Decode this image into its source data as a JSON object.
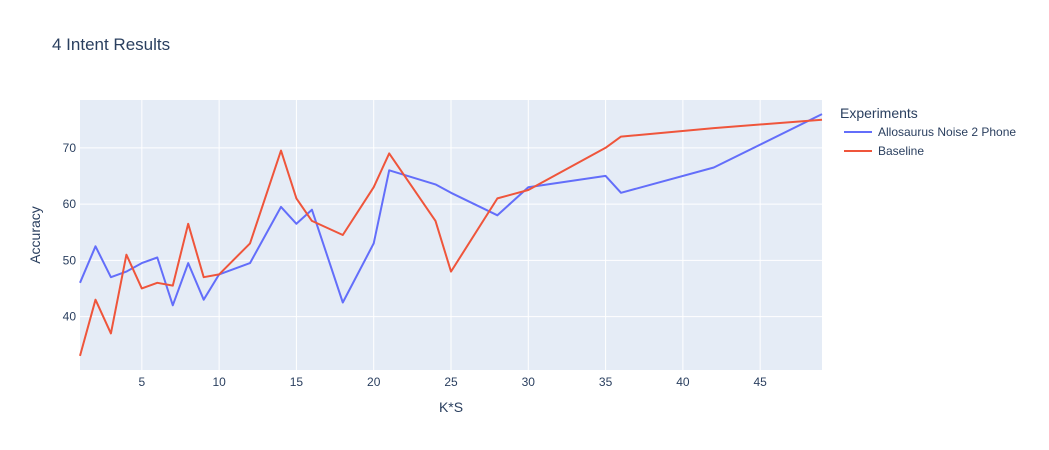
{
  "chart_data": {
    "type": "line",
    "title": "4 Intent Results",
    "xlabel": "K*S",
    "ylabel": "Accuracy",
    "xlim": [
      1,
      49
    ],
    "ylim": [
      30.5,
      78.5
    ],
    "x_ticks": [
      5,
      10,
      15,
      20,
      25,
      30,
      35,
      40,
      45
    ],
    "y_ticks": [
      40,
      50,
      60,
      70
    ],
    "grid": true,
    "legend_title": "Experiments",
    "legend_position": "right",
    "series": [
      {
        "name": "Allosaurus Noise 2 Phone",
        "color": "#636efa",
        "x": [
          1,
          2,
          3,
          4,
          5,
          6,
          7,
          8,
          9,
          10,
          12,
          14,
          15,
          16,
          18,
          20,
          21,
          24,
          25,
          28,
          30,
          35,
          36,
          42,
          49
        ],
        "y": [
          46,
          52.5,
          47,
          48,
          49.5,
          50.5,
          42,
          49.5,
          43,
          47.5,
          49.5,
          59.5,
          56.5,
          59,
          42.5,
          53,
          66,
          63.5,
          62,
          58,
          63,
          65,
          62,
          66.5,
          76
        ]
      },
      {
        "name": "Baseline",
        "color": "#ef553b",
        "x": [
          1,
          2,
          3,
          4,
          5,
          6,
          7,
          8,
          9,
          10,
          12,
          14,
          15,
          16,
          18,
          20,
          21,
          24,
          25,
          28,
          30,
          35,
          36,
          42,
          49
        ],
        "y": [
          33,
          43,
          37,
          51,
          45,
          46,
          45.5,
          56.5,
          47,
          47.5,
          53,
          69.5,
          61,
          57,
          54.5,
          63,
          69,
          57,
          48,
          61,
          62.5,
          70,
          72,
          73.5,
          75
        ]
      }
    ]
  }
}
